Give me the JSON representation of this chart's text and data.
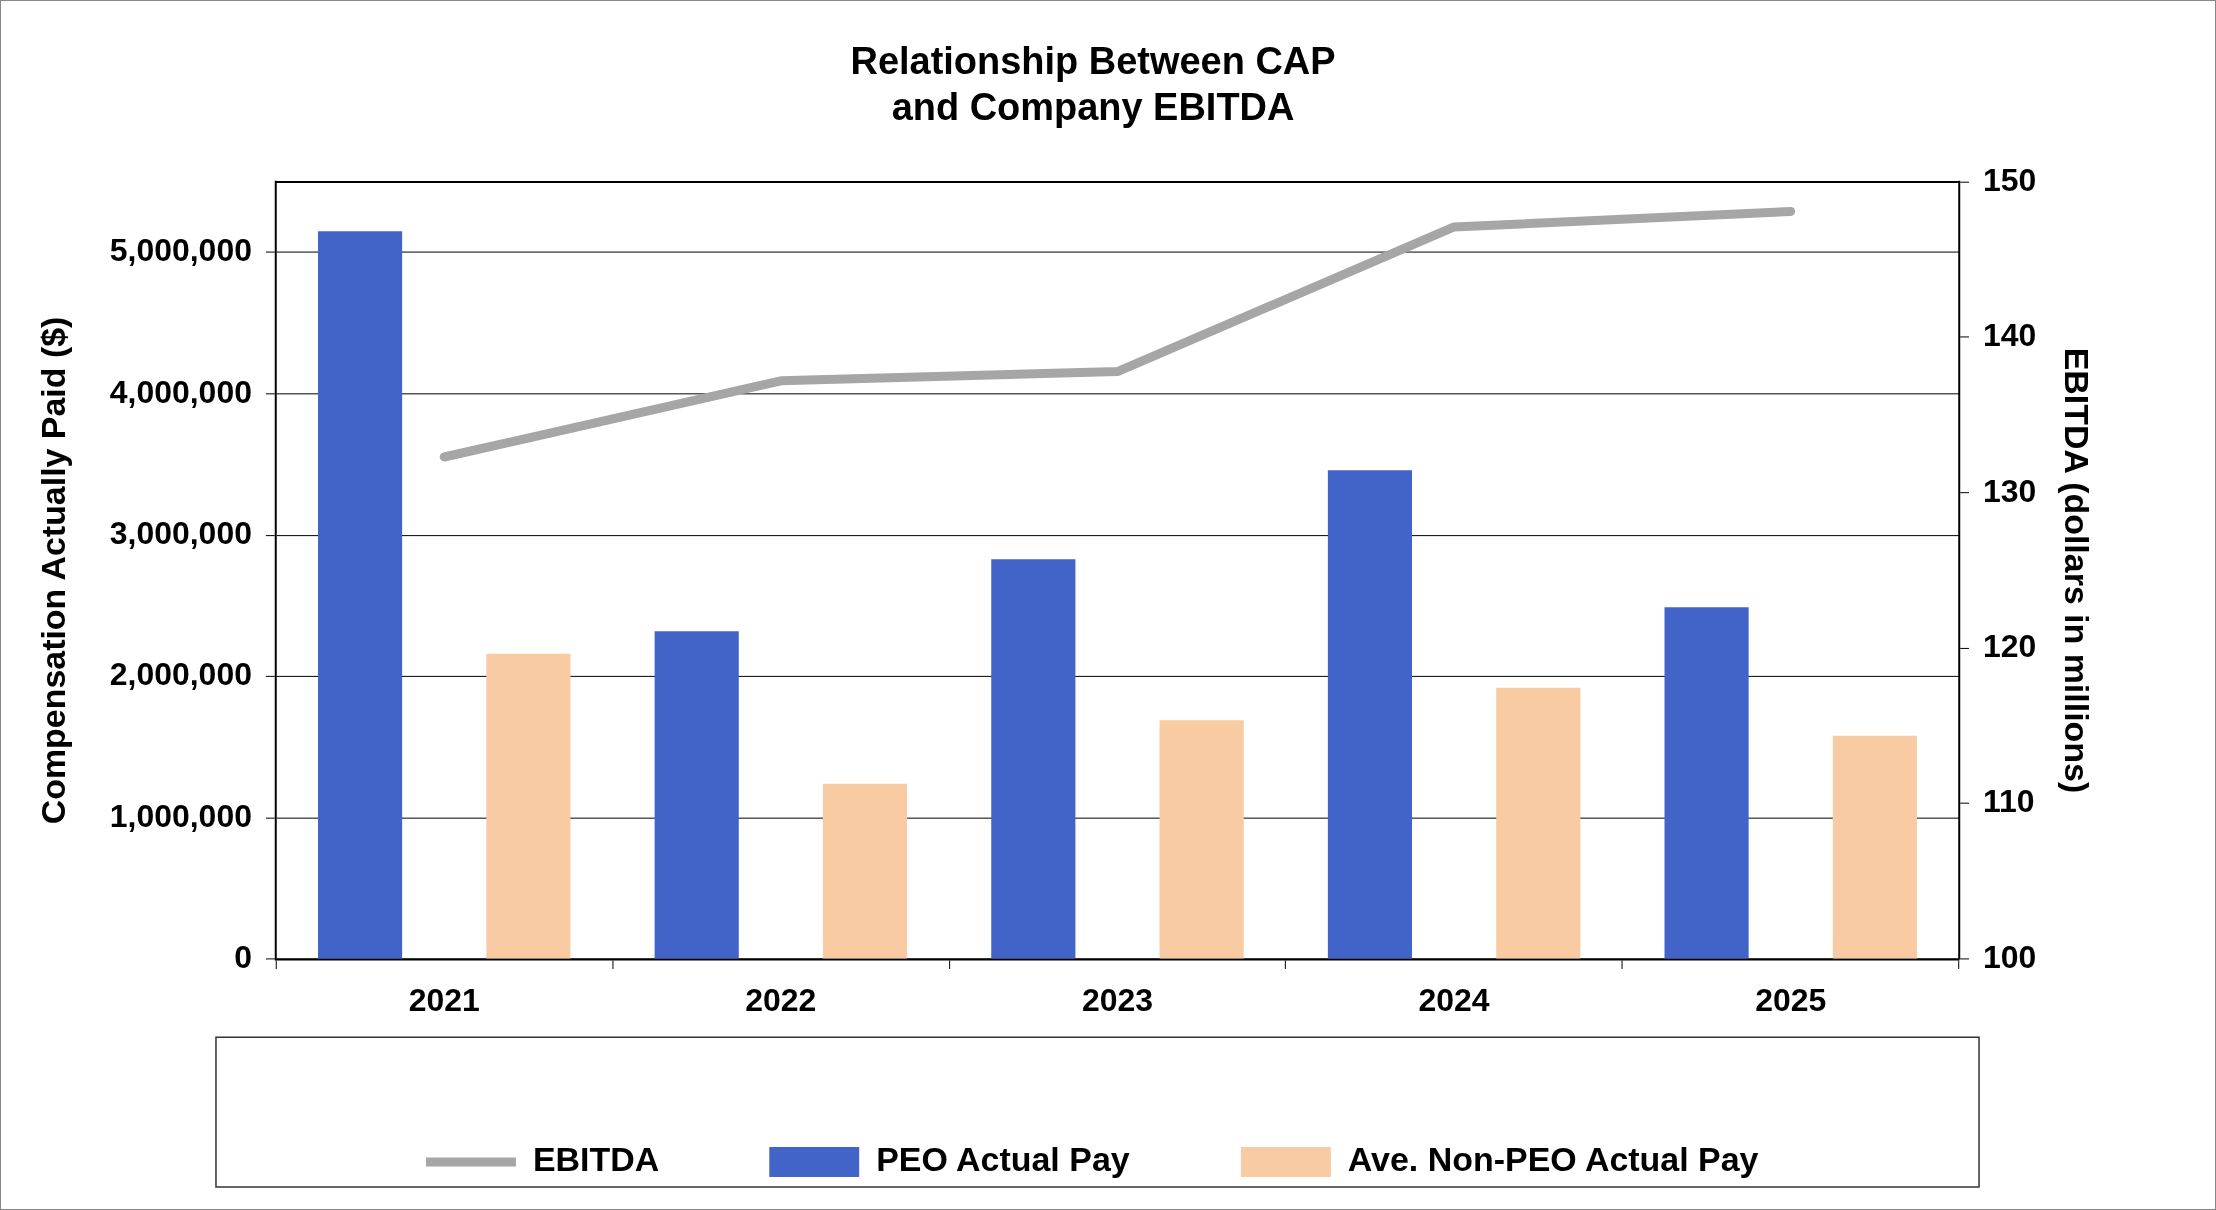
{
  "chart_data": {
    "type": "bar",
    "title": "Relationship Between CAP\nand Company EBITDA",
    "ylabel": "Compensation Actually Paid ($)",
    "y2label": "EBITDA (dollars in millions)",
    "categories": [
      "2021",
      "2022",
      "2023",
      "2024",
      "2025"
    ],
    "series": [
      {
        "name": "PEO Actual Pay",
        "color": "#4264c8",
        "values": [
          5150000,
          2320000,
          2830000,
          3460000,
          2490000
        ]
      },
      {
        "name": "Ave. Non-PEO Actual Pay",
        "color": "#f8cba3",
        "values": [
          2160000,
          1240000,
          1690000,
          1920000,
          1580000
        ]
      },
      {
        "name": "EBITDA",
        "type": "line",
        "axis": "y2",
        "color": "#a6a6a6",
        "values": [
          132.3,
          137.2,
          137.8,
          147.1,
          148.1
        ]
      }
    ],
    "ylim": [
      0,
      5500000
    ],
    "yticks": [
      {
        "value": 0,
        "label": "0"
      },
      {
        "value": 1000000,
        "label": "1,000,000"
      },
      {
        "value": 2000000,
        "label": "2,000,000"
      },
      {
        "value": 3000000,
        "label": "3,000,000"
      },
      {
        "value": 4000000,
        "label": "4,000,000"
      },
      {
        "value": 5000000,
        "label": "5,000,000"
      }
    ],
    "y2lim": [
      100,
      150
    ],
    "y2ticks": [
      100,
      110,
      120,
      130,
      140,
      150
    ],
    "grid": "y",
    "legend": "bottom",
    "marker": "none"
  }
}
